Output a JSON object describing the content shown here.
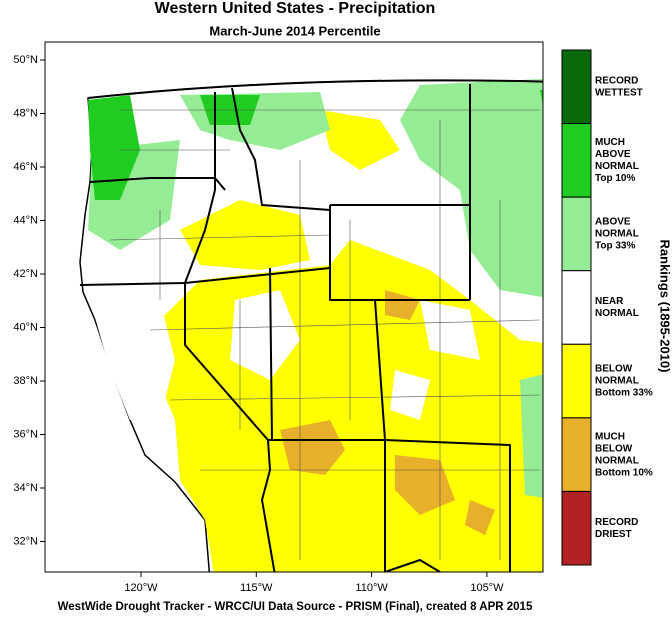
{
  "header": {
    "title": "Western United States - Precipitation",
    "subtitle": "March-June 2014 Percentile"
  },
  "map": {
    "lat_labels": [
      "50°N",
      "48°N",
      "46°N",
      "44°N",
      "42°N",
      "40°N",
      "38°N",
      "36°N",
      "34°N",
      "32°N"
    ],
    "lon_labels": [
      "120°W",
      "115°W",
      "110°W",
      "105°W"
    ]
  },
  "legend": {
    "title": "Rankings (1895-2010)",
    "items": [
      {
        "lines": [
          "RECORD",
          "WETTEST"
        ],
        "color": "#0b6b0b"
      },
      {
        "lines": [
          "MUCH",
          "ABOVE",
          "NORMAL",
          "Top 10%"
        ],
        "color": "#1fcc1f"
      },
      {
        "lines": [
          "ABOVE",
          "NORMAL",
          "Top 33%"
        ],
        "color": "#95ec95"
      },
      {
        "lines": [
          "NEAR",
          "NORMAL"
        ],
        "color": "#ffffff"
      },
      {
        "lines": [
          "BELOW",
          "NORMAL",
          "Bottom 33%"
        ],
        "color": "#ffff00"
      },
      {
        "lines": [
          "MUCH",
          "BELOW",
          "NORMAL",
          "Bottom 10%"
        ],
        "color": "#e8b02a"
      },
      {
        "lines": [
          "RECORD",
          "DRIEST"
        ],
        "color": "#b22222"
      }
    ]
  },
  "footer": "WestWide Drought Tracker - WRCC/UI  Data Source - PRISM (Final), created  8 APR 2015"
}
